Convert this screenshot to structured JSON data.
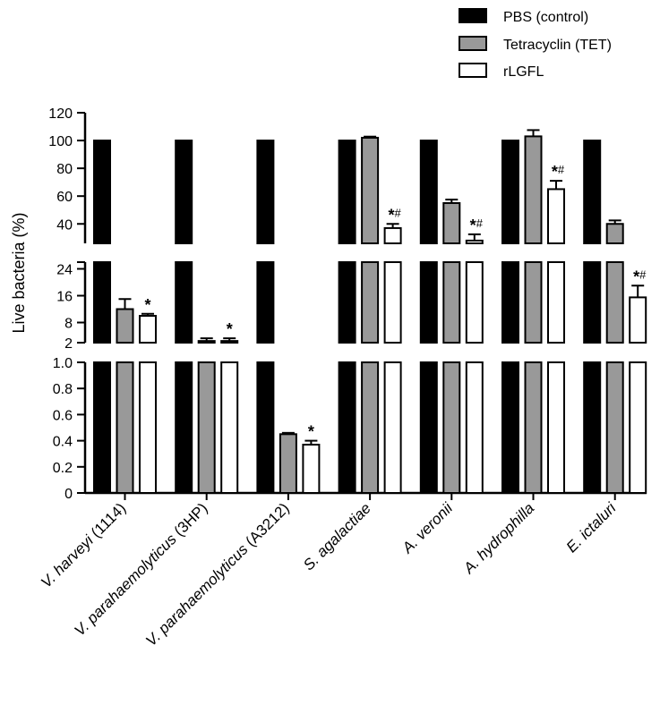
{
  "chart_data": {
    "type": "bar",
    "ylabel": "Live bacteria (%)",
    "categories": [
      {
        "italic": "V. harveyi",
        "normal": " (1114)"
      },
      {
        "italic": "V. parahaemolyticus",
        "normal": " (3HP)"
      },
      {
        "italic": "V. parahaemolyticus",
        "normal": " (A3212)"
      },
      {
        "italic": "S. agalactiae",
        "normal": ""
      },
      {
        "italic": "A. veronii",
        "normal": ""
      },
      {
        "italic": "A. hydrophilla",
        "normal": ""
      },
      {
        "italic": "E. ictaluri",
        "normal": ""
      }
    ],
    "series": [
      {
        "name": "PBS (control)",
        "color": "#000000",
        "values": [
          100,
          100,
          100,
          100,
          100,
          100,
          100
        ],
        "errors": [
          0,
          0,
          0,
          0,
          0,
          0,
          0
        ],
        "annotations": [
          "",
          "",
          "",
          "",
          "",
          "",
          ""
        ]
      },
      {
        "name": "Tetracyclin (TET)",
        "color": "#999999",
        "values": [
          12,
          2.5,
          0.45,
          102,
          55,
          103,
          40
        ],
        "errors": [
          3,
          0.8,
          0.01,
          0.8,
          2.5,
          4.5,
          2.5
        ],
        "annotations": [
          "",
          "",
          "",
          "",
          "",
          "",
          ""
        ]
      },
      {
        "name": "rLGFL",
        "color": "#ffffff",
        "values": [
          10,
          2.5,
          0.37,
          37,
          28,
          65,
          15.5
        ],
        "errors": [
          0.6,
          0.8,
          0.03,
          3,
          4.5,
          6,
          3.5
        ],
        "annotations": [
          "*",
          "*",
          "*",
          "*#",
          "*#",
          "*#",
          "*#"
        ]
      }
    ],
    "y_segments": [
      {
        "range": [
          0,
          1.0
        ],
        "ticks": [
          "0",
          "0.2",
          "0.4",
          "0.6",
          "0.8",
          "1.0"
        ]
      },
      {
        "range": [
          2,
          26
        ],
        "ticks": [
          "2",
          "8",
          "16",
          "24"
        ]
      },
      {
        "range": [
          26,
          120
        ],
        "ticks": [
          "40",
          "60",
          "80",
          "100",
          "120"
        ]
      }
    ],
    "legend_position": "top-right"
  }
}
